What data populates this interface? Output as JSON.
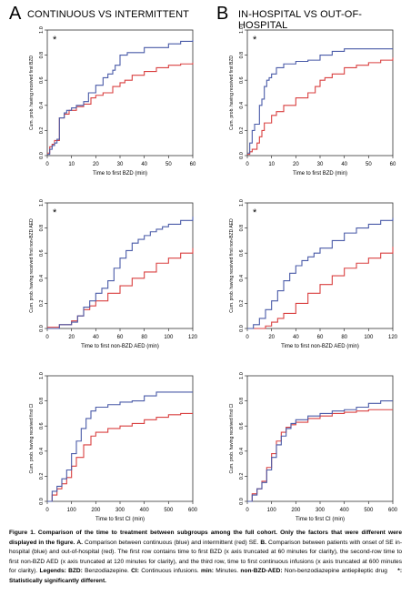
{
  "columns": [
    {
      "letter": "A",
      "title": "CONTINUOUS VS INTERMITTENT"
    },
    {
      "letter": "B",
      "title": "IN-HOSPITAL VS OUT-OF-HOSPITAL"
    }
  ],
  "colors": {
    "blue": "#4a5ba8",
    "red": "#d94040",
    "axis": "#333333"
  },
  "caption": {
    "figure_title": "Figure 1. Comparison of the time to treatment between subgroups among the full cohort. Only the factors that were different were displayed in the figure.",
    "a_label": "A.",
    "a_text": "Comparison between continuous (blue) and intermittent (red) SE.",
    "b_label": "B.",
    "b_text": "Comparison between patients with onset of SE in-hospital (blue) and out-of-hospital (red). The first row contains time to first BZD (x axis truncated at 60 minutes for clarity), the second-row time to first non-BZD AED (x axis truncated at 120 minutes for clarity), and the third row, time to first continuous infusions (x axis truncated at 600 minutes for clarity).",
    "legends_label": "Legends:",
    "bzd_label": "BZD:",
    "bzd_text": "Benzodiazepine.",
    "ci_label": "CI:",
    "ci_text": "Continuous infusions.",
    "min_label": "min:",
    "min_text": "Minutes.",
    "nonbzd_label": "non-BZD-AED:",
    "nonbzd_text": "Non-benzodiazepine antiepileptic drug",
    "star_text": "*: Statistically significantly different."
  },
  "chart_data": [
    {
      "type": "line",
      "panel": "A-row1",
      "xlabel": "Time to first BZD (min)",
      "ylabel": "Cum. prob. having received first BZD",
      "xlim": [
        0,
        60
      ],
      "ylim": [
        0,
        1
      ],
      "xticks": [
        0,
        10,
        20,
        30,
        40,
        50,
        60
      ],
      "yticks": [
        0.0,
        0.2,
        0.4,
        0.6,
        0.8,
        1.0
      ],
      "significant": true,
      "star": "*",
      "series": [
        {
          "color": "blue",
          "x": [
            0,
            1,
            2,
            3,
            4,
            5,
            7,
            8,
            10,
            12,
            15,
            17,
            20,
            23,
            25,
            27,
            28,
            30,
            33,
            40,
            50,
            55,
            60
          ],
          "y": [
            0.01,
            0.05,
            0.08,
            0.1,
            0.13,
            0.3,
            0.34,
            0.36,
            0.38,
            0.4,
            0.43,
            0.5,
            0.56,
            0.62,
            0.65,
            0.68,
            0.72,
            0.8,
            0.82,
            0.86,
            0.89,
            0.91,
            0.92
          ]
        },
        {
          "color": "red",
          "x": [
            0,
            1,
            2,
            3,
            5,
            7,
            9,
            12,
            15,
            18,
            20,
            23,
            27,
            30,
            32,
            35,
            40,
            45,
            50,
            55,
            60
          ],
          "y": [
            0.02,
            0.07,
            0.09,
            0.12,
            0.3,
            0.33,
            0.36,
            0.39,
            0.41,
            0.46,
            0.48,
            0.5,
            0.55,
            0.58,
            0.6,
            0.64,
            0.67,
            0.7,
            0.72,
            0.73,
            0.74
          ]
        }
      ]
    },
    {
      "type": "line",
      "panel": "B-row1",
      "xlabel": "Time to first BZD (min)",
      "ylabel": "Cum. prob. having received first BZD",
      "xlim": [
        0,
        60
      ],
      "ylim": [
        0,
        1
      ],
      "xticks": [
        0,
        10,
        20,
        30,
        40,
        50,
        60
      ],
      "yticks": [
        0.0,
        0.2,
        0.4,
        0.6,
        0.8,
        1.0
      ],
      "significant": true,
      "star": "*",
      "series": [
        {
          "color": "blue",
          "x": [
            0,
            1,
            2,
            3,
            5,
            6,
            7,
            8,
            9,
            10,
            12,
            15,
            20,
            25,
            30,
            35,
            40,
            50,
            60
          ],
          "y": [
            0.02,
            0.1,
            0.2,
            0.25,
            0.4,
            0.45,
            0.55,
            0.6,
            0.62,
            0.65,
            0.7,
            0.73,
            0.75,
            0.76,
            0.8,
            0.83,
            0.85,
            0.85,
            0.85
          ]
        },
        {
          "color": "red",
          "x": [
            0,
            1,
            2,
            4,
            5,
            6,
            7,
            10,
            12,
            15,
            20,
            25,
            28,
            30,
            32,
            35,
            40,
            45,
            50,
            55,
            60
          ],
          "y": [
            0.01,
            0.03,
            0.05,
            0.1,
            0.15,
            0.2,
            0.26,
            0.32,
            0.35,
            0.4,
            0.46,
            0.5,
            0.55,
            0.6,
            0.62,
            0.65,
            0.7,
            0.72,
            0.74,
            0.76,
            0.78
          ]
        }
      ]
    },
    {
      "type": "line",
      "panel": "A-row2",
      "xlabel": "Time to first non-BZD AED (min)",
      "ylabel": "Cum. prob. having received first non-BZD AED",
      "xlim": [
        0,
        120
      ],
      "ylim": [
        0,
        1
      ],
      "xticks": [
        0,
        20,
        40,
        60,
        80,
        100,
        120
      ],
      "yticks": [
        0.0,
        0.2,
        0.4,
        0.6,
        0.8,
        1.0
      ],
      "significant": true,
      "star": "*",
      "series": [
        {
          "color": "blue",
          "x": [
            0,
            10,
            20,
            25,
            30,
            35,
            40,
            45,
            50,
            55,
            60,
            65,
            70,
            75,
            80,
            85,
            90,
            95,
            100,
            110,
            120
          ],
          "y": [
            0.0,
            0.03,
            0.05,
            0.1,
            0.17,
            0.22,
            0.28,
            0.32,
            0.38,
            0.48,
            0.56,
            0.62,
            0.68,
            0.71,
            0.74,
            0.77,
            0.79,
            0.81,
            0.83,
            0.86,
            0.89
          ]
        },
        {
          "color": "red",
          "x": [
            0,
            10,
            20,
            25,
            30,
            35,
            40,
            50,
            60,
            70,
            80,
            90,
            100,
            110,
            120
          ],
          "y": [
            0.01,
            0.03,
            0.06,
            0.1,
            0.15,
            0.18,
            0.22,
            0.28,
            0.34,
            0.4,
            0.45,
            0.52,
            0.56,
            0.6,
            0.64
          ]
        }
      ]
    },
    {
      "type": "line",
      "panel": "B-row2",
      "xlabel": "Time to first non-BZD AED (min)",
      "ylabel": "Cum. prob. having received first non-BZD AED",
      "xlim": [
        0,
        120
      ],
      "ylim": [
        0,
        1
      ],
      "xticks": [
        0,
        20,
        40,
        60,
        80,
        100,
        120
      ],
      "yticks": [
        0.0,
        0.2,
        0.4,
        0.6,
        0.8,
        1.0
      ],
      "significant": true,
      "star": "*",
      "series": [
        {
          "color": "blue",
          "x": [
            0,
            5,
            10,
            15,
            20,
            25,
            30,
            35,
            40,
            45,
            50,
            55,
            60,
            70,
            80,
            90,
            100,
            110,
            120
          ],
          "y": [
            0.0,
            0.03,
            0.08,
            0.15,
            0.22,
            0.3,
            0.38,
            0.44,
            0.5,
            0.54,
            0.57,
            0.6,
            0.64,
            0.7,
            0.76,
            0.8,
            0.83,
            0.86,
            0.88
          ]
        },
        {
          "color": "red",
          "x": [
            0,
            15,
            20,
            25,
            30,
            40,
            50,
            60,
            70,
            80,
            90,
            100,
            110,
            120
          ],
          "y": [
            0.0,
            0.02,
            0.05,
            0.08,
            0.12,
            0.2,
            0.28,
            0.35,
            0.42,
            0.48,
            0.52,
            0.56,
            0.6,
            0.65
          ]
        }
      ]
    },
    {
      "type": "line",
      "panel": "A-row3",
      "xlabel": "Time to first CI (min)",
      "ylabel": "Cum. prob. having received first CI",
      "xlim": [
        0,
        600
      ],
      "ylim": [
        0,
        1
      ],
      "xticks": [
        0,
        100,
        200,
        300,
        400,
        500,
        600
      ],
      "yticks": [
        0.0,
        0.2,
        0.4,
        0.6,
        0.8,
        1.0
      ],
      "significant": false,
      "series": [
        {
          "color": "blue",
          "x": [
            0,
            20,
            40,
            60,
            80,
            100,
            120,
            140,
            160,
            180,
            200,
            250,
            300,
            350,
            400,
            450,
            500,
            600
          ],
          "y": [
            0.0,
            0.08,
            0.12,
            0.18,
            0.25,
            0.38,
            0.48,
            0.58,
            0.66,
            0.72,
            0.75,
            0.77,
            0.79,
            0.8,
            0.84,
            0.87,
            0.87,
            0.87
          ]
        },
        {
          "color": "red",
          "x": [
            0,
            20,
            40,
            60,
            80,
            100,
            120,
            150,
            180,
            200,
            250,
            300,
            350,
            400,
            450,
            500,
            550,
            600
          ],
          "y": [
            0.0,
            0.05,
            0.1,
            0.14,
            0.19,
            0.28,
            0.35,
            0.45,
            0.52,
            0.55,
            0.58,
            0.6,
            0.62,
            0.65,
            0.67,
            0.69,
            0.7,
            0.7
          ]
        }
      ]
    },
    {
      "type": "line",
      "panel": "B-row3",
      "xlabel": "Time to first CI (min)",
      "ylabel": "Cum. prob. having received first CI",
      "xlim": [
        0,
        600
      ],
      "ylim": [
        0,
        1
      ],
      "xticks": [
        0,
        100,
        200,
        300,
        400,
        500,
        600
      ],
      "yticks": [
        0.0,
        0.2,
        0.4,
        0.6,
        0.8,
        1.0
      ],
      "significant": false,
      "series": [
        {
          "color": "blue",
          "x": [
            0,
            20,
            40,
            60,
            80,
            100,
            120,
            140,
            160,
            180,
            200,
            250,
            300,
            350,
            400,
            450,
            500,
            550,
            600
          ],
          "y": [
            0.0,
            0.05,
            0.1,
            0.15,
            0.25,
            0.35,
            0.45,
            0.52,
            0.58,
            0.62,
            0.65,
            0.68,
            0.7,
            0.72,
            0.73,
            0.75,
            0.78,
            0.8,
            0.8
          ]
        },
        {
          "color": "red",
          "x": [
            0,
            20,
            40,
            60,
            80,
            100,
            120,
            140,
            160,
            180,
            200,
            250,
            300,
            350,
            400,
            450,
            500,
            550,
            600
          ],
          "y": [
            0.0,
            0.06,
            0.1,
            0.16,
            0.27,
            0.38,
            0.48,
            0.55,
            0.59,
            0.61,
            0.63,
            0.66,
            0.68,
            0.7,
            0.71,
            0.72,
            0.73,
            0.73,
            0.73
          ]
        }
      ]
    }
  ]
}
